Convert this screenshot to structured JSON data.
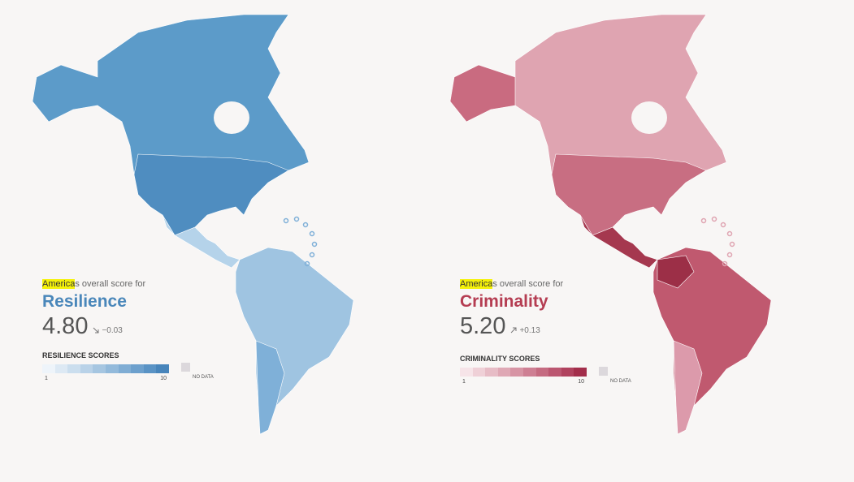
{
  "panels": [
    {
      "highlight": "America",
      "intro": "s overall score for",
      "metric": "Resilience",
      "score": "4.80",
      "change": "−0.03",
      "legend": {
        "title": "RESILIENCE SCORES",
        "min": "1",
        "max": "10",
        "no_data": "NO DATA"
      }
    },
    {
      "highlight": "America",
      "intro": "s overall score for",
      "metric": "Criminality",
      "score": "5.20",
      "change": "+0.13",
      "legend": {
        "title": "CRIMINALITY SCORES",
        "min": "1",
        "max": "10",
        "no_data": "NO DATA"
      }
    }
  ]
}
